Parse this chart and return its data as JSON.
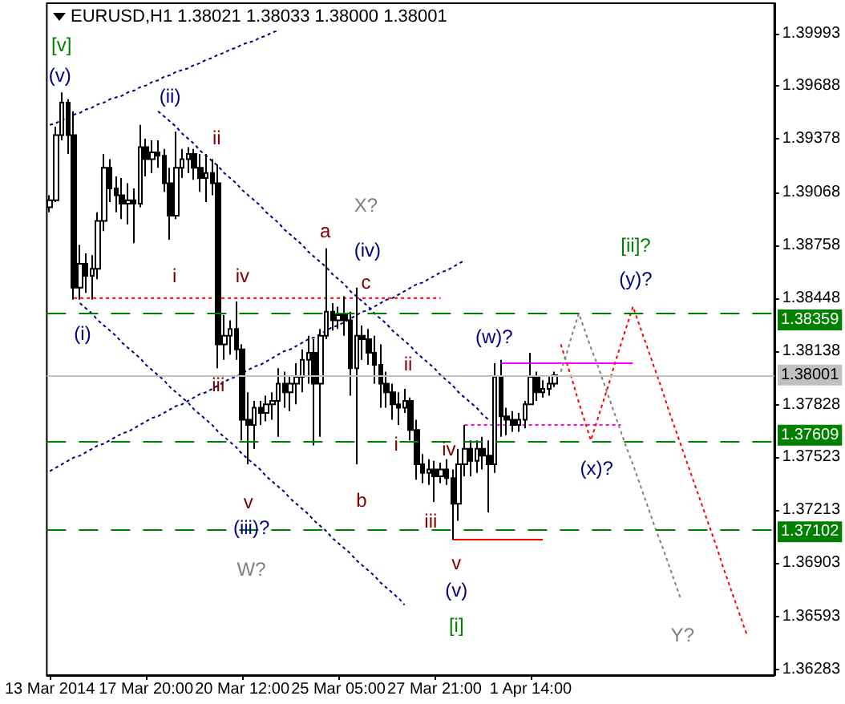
{
  "chart_data": {
    "type": "candlestick",
    "title": "EURUSD,H1 1.38021 1.38033 1.38000 1.38001",
    "marker": "none",
    "categories": [
      "13 Mar 2014",
      null,
      null,
      null,
      null,
      null,
      null,
      null,
      null,
      null,
      null,
      null,
      null,
      null,
      null,
      null,
      "17 Mar 20:00",
      null,
      null,
      null,
      null,
      null,
      null,
      null,
      null,
      null,
      null,
      null,
      null,
      null,
      null,
      null,
      "20 Mar 12:00",
      null,
      null,
      null,
      null,
      null,
      null,
      null,
      null,
      null,
      null,
      null,
      null,
      null,
      null,
      null,
      "25 Mar 05:00",
      null,
      null,
      null,
      null,
      null,
      null,
      null,
      null,
      null,
      null,
      null,
      null,
      null,
      null,
      null,
      "27 Mar 21:00",
      null,
      null,
      null,
      null,
      null,
      null,
      null,
      null,
      null,
      null,
      null,
      null,
      null,
      null,
      null,
      "1 Apr 14:00",
      null,
      null,
      null,
      null,
      null,
      null,
      null,
      null,
      null,
      null,
      null,
      null,
      null,
      null,
      null,
      null,
      null,
      null,
      null,
      null,
      null,
      null,
      null,
      null,
      null,
      null,
      null,
      null,
      null,
      null,
      null,
      null,
      null,
      null,
      null,
      null,
      null,
      null,
      null,
      null
    ],
    "ylim": [
      1.3625,
      1.4017
    ],
    "yticks": [
      1.36283,
      1.36593,
      1.36903,
      1.37213,
      1.37523,
      1.37828,
      1.38138,
      1.38448,
      1.38758,
      1.39068,
      1.39378,
      1.39688,
      1.39993
    ],
    "series": [
      {
        "color": "#000000",
        "ohlc": [
          [
            1.3898,
            1.3905,
            1.3895,
            1.3902
          ],
          [
            1.3902,
            1.3945,
            1.3901,
            1.394
          ],
          [
            1.394,
            1.3965,
            1.3937,
            1.3959
          ],
          [
            1.3959,
            1.3961,
            1.3929,
            1.394
          ],
          [
            1.394,
            1.3954,
            1.3844,
            1.3851
          ],
          [
            1.3851,
            1.3876,
            1.3844,
            1.3865
          ],
          [
            1.3865,
            1.3871,
            1.3848,
            1.3858
          ],
          [
            1.3858,
            1.387,
            1.3844,
            1.3862
          ],
          [
            1.3862,
            1.3895,
            1.3856,
            1.389
          ],
          [
            1.389,
            1.3929,
            1.3884,
            1.3921
          ],
          [
            1.3921,
            1.3926,
            1.3901,
            1.3909
          ],
          [
            1.3909,
            1.3916,
            1.3895,
            1.3905
          ],
          [
            1.3905,
            1.3915,
            1.3891,
            1.39
          ],
          [
            1.39,
            1.3912,
            1.3888,
            1.3902
          ],
          [
            1.3902,
            1.3909,
            1.3877,
            1.39
          ],
          [
            1.39,
            1.3946,
            1.3898,
            1.3933
          ],
          [
            1.3933,
            1.3938,
            1.3916,
            1.3926
          ],
          [
            1.3926,
            1.3937,
            1.3918,
            1.393
          ],
          [
            1.393,
            1.3937,
            1.3921,
            1.3928
          ],
          [
            1.3928,
            1.3932,
            1.3907,
            1.3912
          ],
          [
            1.3912,
            1.3921,
            1.3879,
            1.3893
          ],
          [
            1.3893,
            1.3942,
            1.3891,
            1.3921
          ],
          [
            1.3921,
            1.3932,
            1.3915,
            1.3926
          ],
          [
            1.3926,
            1.3933,
            1.3918,
            1.3929
          ],
          [
            1.3929,
            1.3932,
            1.3914,
            1.3921
          ],
          [
            1.3921,
            1.3929,
            1.3907,
            1.3915
          ],
          [
            1.3915,
            1.3929,
            1.3901,
            1.3918
          ],
          [
            1.3918,
            1.3926,
            1.3905,
            1.3912
          ],
          [
            1.3912,
            1.3923,
            1.3804,
            1.3818
          ],
          [
            1.3818,
            1.3835,
            1.3809,
            1.3823
          ],
          [
            1.3823,
            1.3832,
            1.3812,
            1.3827
          ],
          [
            1.3827,
            1.3843,
            1.3809,
            1.3815
          ],
          [
            1.3815,
            1.3818,
            1.3762,
            1.3774
          ],
          [
            1.3774,
            1.379,
            1.3748,
            1.3771
          ],
          [
            1.3771,
            1.3785,
            1.3757,
            1.3781
          ],
          [
            1.3781,
            1.3785,
            1.3771,
            1.3778
          ],
          [
            1.3778,
            1.3788,
            1.3773,
            1.3783
          ],
          [
            1.3783,
            1.379,
            1.3774,
            1.3785
          ],
          [
            1.3785,
            1.3804,
            1.3764,
            1.3795
          ],
          [
            1.3795,
            1.3802,
            1.3781,
            1.379
          ],
          [
            1.379,
            1.3799,
            1.3779,
            1.3795
          ],
          [
            1.3795,
            1.3807,
            1.3783,
            1.3799
          ],
          [
            1.3799,
            1.3815,
            1.379,
            1.3809
          ],
          [
            1.3809,
            1.3823,
            1.3795,
            1.3813
          ],
          [
            1.3813,
            1.3821,
            1.3759,
            1.3795
          ],
          [
            1.3795,
            1.3827,
            1.3764,
            1.3823
          ],
          [
            1.3823,
            1.3874,
            1.3821,
            1.3837
          ],
          [
            1.3837,
            1.3842,
            1.3826,
            1.3832
          ],
          [
            1.3832,
            1.384,
            1.3827,
            1.3835
          ],
          [
            1.3835,
            1.3846,
            1.3823,
            1.3832
          ],
          [
            1.3832,
            1.3837,
            1.3788,
            1.3804
          ],
          [
            1.3804,
            1.3851,
            1.3748,
            1.3823
          ],
          [
            1.3823,
            1.3829,
            1.3809,
            1.3821
          ],
          [
            1.3821,
            1.3827,
            1.3806,
            1.3813
          ],
          [
            1.3813,
            1.3823,
            1.3795,
            1.3806
          ],
          [
            1.3806,
            1.3818,
            1.3781,
            1.3795
          ],
          [
            1.3795,
            1.3802,
            1.3781,
            1.379
          ],
          [
            1.379,
            1.3795,
            1.3774,
            1.3783
          ],
          [
            1.3783,
            1.379,
            1.3771,
            1.3781
          ],
          [
            1.3781,
            1.3792,
            1.3778,
            1.3785
          ],
          [
            1.3785,
            1.3787,
            1.3762,
            1.3768
          ],
          [
            1.3768,
            1.3774,
            1.3739,
            1.3748
          ],
          [
            1.3748,
            1.3754,
            1.3737,
            1.3743
          ],
          [
            1.3743,
            1.3751,
            1.3736,
            1.3745
          ],
          [
            1.3745,
            1.375,
            1.3726,
            1.3741
          ],
          [
            1.3741,
            1.3749,
            1.3737,
            1.3745
          ],
          [
            1.3745,
            1.3751,
            1.3736,
            1.374
          ],
          [
            1.374,
            1.3745,
            1.3704,
            1.3725
          ],
          [
            1.3725,
            1.3757,
            1.3715,
            1.3748
          ],
          [
            1.3748,
            1.3771,
            1.3741,
            1.3757
          ],
          [
            1.3757,
            1.3762,
            1.3741,
            1.375
          ],
          [
            1.375,
            1.3762,
            1.3743,
            1.3757
          ],
          [
            1.3757,
            1.3764,
            1.3745,
            1.3753
          ],
          [
            1.3753,
            1.3762,
            1.372,
            1.3748
          ],
          [
            1.3748,
            1.3807,
            1.3743,
            1.3799
          ],
          [
            1.3799,
            1.3809,
            1.3764,
            1.3776
          ],
          [
            1.3776,
            1.3781,
            1.3765,
            1.3774
          ],
          [
            1.3774,
            1.3779,
            1.3767,
            1.3771
          ],
          [
            1.3771,
            1.3778,
            1.3767,
            1.3774
          ],
          [
            1.3774,
            1.3785,
            1.3769,
            1.3783
          ],
          [
            1.3783,
            1.3813,
            1.3783,
            1.3799
          ],
          [
            1.3799,
            1.3802,
            1.3785,
            1.379
          ],
          [
            1.379,
            1.3797,
            1.3787,
            1.3792
          ],
          [
            1.3792,
            1.3799,
            1.3788,
            1.3795
          ],
          [
            1.3795,
            1.3802,
            1.3793,
            1.38
          ],
          null,
          null,
          null,
          null,
          null,
          null,
          null,
          null,
          null,
          null,
          null,
          null,
          null,
          null,
          null,
          null,
          null,
          null,
          null,
          null,
          null,
          null,
          null,
          null,
          null,
          null,
          null,
          null,
          null,
          null,
          null,
          null,
          null,
          null,
          null,
          null
        ]
      },
      {
        "type": "line",
        "color": "#000080",
        "line_style": "dotted",
        "values": [
          1.3946,
          1.3947,
          1.3949,
          1.395,
          1.3952,
          1.3953,
          1.3955,
          1.3956,
          1.3958,
          1.3959,
          1.3961,
          1.3962,
          1.3963,
          1.3965,
          1.3966,
          1.3968,
          1.3969,
          1.3971,
          1.3972,
          1.3974,
          1.3975,
          1.3977,
          1.3978,
          1.3979,
          1.3981,
          1.3982,
          1.3984,
          1.3985,
          1.3987,
          1.3988,
          1.399,
          1.3991,
          1.3993,
          1.3994,
          1.3995,
          1.3997,
          1.3998,
          1.4,
          1.4001,
          null,
          null,
          null,
          null,
          null,
          null,
          null,
          null,
          null,
          null,
          null,
          null,
          null,
          null,
          null,
          null,
          null,
          null,
          null,
          null,
          null,
          null,
          null,
          null,
          null,
          null,
          null,
          null,
          null,
          null,
          null,
          null,
          null,
          null,
          null,
          null,
          null,
          null,
          null,
          null,
          null,
          null,
          null,
          null,
          null,
          null,
          null,
          null,
          null,
          null,
          null,
          null,
          null,
          null,
          null,
          null,
          null,
          null,
          null,
          null,
          null,
          null,
          null,
          null,
          null,
          null,
          null,
          null,
          null,
          null,
          null,
          null,
          null,
          null,
          null,
          null,
          null,
          null,
          null,
          null,
          null,
          null
        ]
      },
      {
        "type": "line",
        "color": "#000080",
        "line_style": "dotted",
        "values": [
          null,
          null,
          null,
          null,
          null,
          null,
          null,
          null,
          null,
          null,
          null,
          null,
          null,
          null,
          null,
          null,
          null,
          null,
          1.3954,
          1.3951,
          1.3948,
          1.3945,
          1.3941,
          1.3938,
          1.3935,
          1.3931,
          1.3928,
          1.3925,
          1.3922,
          1.3918,
          1.3915,
          1.3912,
          1.3908,
          1.3905,
          1.3902,
          1.3899,
          1.3895,
          1.3892,
          1.3889,
          1.3885,
          1.3882,
          1.3879,
          1.3876,
          1.3872,
          1.3869,
          1.3866,
          1.3863,
          1.3859,
          1.3856,
          1.3853,
          1.3849,
          1.3846,
          1.3843,
          1.384,
          1.3836,
          1.3833,
          1.383,
          1.3826,
          1.3823,
          1.382,
          1.3817,
          1.3813,
          1.381,
          1.3807,
          1.3804,
          1.38,
          1.3797,
          1.3794,
          1.379,
          1.3787,
          1.3784,
          1.3781,
          1.3777,
          1.3774,
          null,
          null,
          null,
          null,
          null,
          null,
          null,
          null,
          null,
          null,
          null,
          null,
          null,
          null,
          null,
          null,
          null,
          null,
          null,
          null,
          null,
          null,
          null,
          null,
          null,
          null,
          null,
          null,
          null,
          null,
          null,
          null,
          null,
          null,
          null,
          null,
          null,
          null,
          null,
          null,
          null,
          null,
          null,
          null,
          null,
          null,
          null
        ]
      },
      {
        "type": "line",
        "color": "#000080",
        "line_style": "dotted",
        "values": [
          null,
          null,
          null,
          null,
          null,
          1.3842,
          1.3839,
          1.3836,
          1.3832,
          1.3829,
          1.3826,
          1.3823,
          1.3819,
          1.3816,
          1.3813,
          1.381,
          1.3806,
          1.3803,
          1.38,
          1.3797,
          1.3793,
          1.379,
          1.3787,
          1.3784,
          1.378,
          1.3777,
          1.3774,
          1.3771,
          1.3767,
          1.3764,
          1.3761,
          1.3758,
          1.3754,
          1.3751,
          1.3748,
          1.3745,
          1.3741,
          1.3738,
          1.3735,
          1.3732,
          1.3728,
          1.3725,
          1.3722,
          1.3719,
          1.3715,
          1.3712,
          1.3709,
          1.3705,
          1.3702,
          1.3699,
          1.3696,
          1.3692,
          1.3689,
          1.3686,
          1.3683,
          1.3679,
          1.3676,
          1.3673,
          1.367,
          1.3666,
          null,
          null,
          null,
          null,
          null,
          null,
          null,
          null,
          null,
          null,
          null,
          null,
          null,
          null,
          null,
          null,
          null,
          null,
          null,
          null,
          null,
          null,
          null,
          null,
          null,
          null,
          null,
          null,
          null,
          null,
          null,
          null,
          null,
          null,
          null,
          null,
          null,
          null,
          null,
          null,
          null,
          null,
          null,
          null,
          null,
          null,
          null,
          null,
          null,
          null,
          null,
          null,
          null,
          null,
          null,
          null,
          null,
          null,
          null,
          null,
          null
        ]
      },
      {
        "type": "line",
        "color": "#000080",
        "line_style": "dotted",
        "values": [
          1.3744,
          1.3746,
          1.3748,
          1.375,
          1.3752,
          1.3753,
          1.3755,
          1.3757,
          1.3759,
          1.376,
          1.3762,
          1.3764,
          1.3766,
          1.3767,
          1.3769,
          1.3771,
          1.3773,
          1.3775,
          1.3776,
          1.3778,
          1.378,
          1.3782,
          1.3783,
          1.3785,
          1.3787,
          1.3789,
          1.379,
          1.3792,
          1.3794,
          1.3796,
          1.3798,
          1.3799,
          1.3801,
          1.3803,
          1.3805,
          1.3806,
          1.3808,
          1.381,
          1.3812,
          1.3814,
          1.3815,
          1.3817,
          1.3819,
          1.3821,
          1.3822,
          1.3824,
          1.3826,
          1.3828,
          1.3829,
          1.3831,
          1.3833,
          1.3835,
          1.3837,
          1.3838,
          1.384,
          1.3842,
          1.3844,
          1.3845,
          1.3847,
          1.3849,
          1.3851,
          1.3853,
          1.3854,
          1.3856,
          1.3858,
          1.386,
          1.3861,
          1.3863,
          1.3865,
          1.3867,
          null,
          null,
          null,
          null,
          null,
          null,
          null,
          null,
          null,
          null,
          null,
          null,
          null,
          null,
          null,
          null,
          null,
          null,
          null,
          null,
          null,
          null,
          null,
          null,
          null,
          null,
          null,
          null,
          null,
          null,
          null,
          null,
          null,
          null,
          null,
          null,
          null,
          null,
          null,
          null,
          null,
          null,
          null,
          null,
          null,
          null,
          null,
          null,
          null,
          null,
          null
        ]
      },
      {
        "type": "line",
        "color": "#ff0000",
        "line_style": "dotted",
        "values": [
          null,
          null,
          null,
          null,
          1.3845,
          1.3845,
          1.3845,
          1.3845,
          1.3845,
          1.3845,
          1.3845,
          1.3845,
          1.3845,
          1.3845,
          1.3845,
          1.3845,
          1.3845,
          1.3845,
          1.3845,
          1.3845,
          1.3845,
          1.3845,
          1.3845,
          1.3845,
          1.3845,
          1.3845,
          1.3845,
          1.3845,
          1.3845,
          1.3845,
          1.3845,
          1.3845,
          1.3845,
          1.3845,
          1.3845,
          1.3845,
          1.3845,
          1.3845,
          1.3845,
          1.3845,
          1.3845,
          1.3845,
          1.3845,
          1.3845,
          1.3845,
          1.3845,
          1.3845,
          1.3845,
          1.3845,
          1.3845,
          1.3845,
          1.3845,
          1.3845,
          1.3845,
          1.3845,
          1.3845,
          1.3845,
          1.3845,
          1.3845,
          1.3845,
          1.3845,
          1.3845,
          1.3845,
          1.3845,
          1.3845,
          1.3845,
          null,
          null,
          null,
          null,
          null,
          null,
          null,
          null,
          null,
          null,
          null,
          null,
          null,
          null,
          null,
          null,
          null,
          null,
          null,
          null,
          null,
          null,
          null,
          null,
          null,
          null,
          null,
          null,
          null,
          null,
          null,
          null,
          null,
          null,
          null,
          null,
          null,
          null,
          null,
          null,
          null,
          null,
          null,
          null,
          null,
          null,
          null,
          null,
          null,
          null,
          null,
          null,
          null,
          null,
          null
        ]
      },
      {
        "type": "line",
        "color": "#ff00ff",
        "line_style": "solid",
        "values": [
          null,
          null,
          null,
          null,
          null,
          null,
          null,
          null,
          null,
          null,
          null,
          null,
          null,
          null,
          null,
          null,
          null,
          null,
          null,
          null,
          null,
          null,
          null,
          null,
          null,
          null,
          null,
          null,
          null,
          null,
          null,
          null,
          null,
          null,
          null,
          null,
          null,
          null,
          null,
          null,
          null,
          null,
          null,
          null,
          null,
          null,
          null,
          null,
          null,
          null,
          null,
          null,
          null,
          null,
          null,
          null,
          null,
          null,
          null,
          null,
          null,
          null,
          null,
          null,
          null,
          null,
          null,
          null,
          null,
          null,
          null,
          null,
          null,
          null,
          null,
          1.3807,
          1.3807,
          1.3807,
          1.3807,
          1.3807,
          1.3807,
          1.3807,
          1.3807,
          1.3807,
          1.3807,
          1.3807,
          1.3807,
          1.3807,
          1.3807,
          1.3807,
          1.3807,
          1.3807,
          1.3807,
          1.3807,
          1.3807,
          1.3807,
          1.3807,
          1.3807,
          null,
          null,
          null,
          null,
          null,
          null,
          null,
          null,
          null,
          null,
          null,
          null,
          null,
          null,
          null,
          null,
          null,
          null,
          null,
          null,
          null,
          null,
          null
        ]
      },
      {
        "type": "line",
        "color": "#ff00ff",
        "line_style": "dotted",
        "values": [
          null,
          null,
          null,
          null,
          null,
          null,
          null,
          null,
          null,
          null,
          null,
          null,
          null,
          null,
          null,
          null,
          null,
          null,
          null,
          null,
          null,
          null,
          null,
          null,
          null,
          null,
          null,
          null,
          null,
          null,
          null,
          null,
          null,
          null,
          null,
          null,
          null,
          null,
          null,
          null,
          null,
          null,
          null,
          null,
          null,
          null,
          null,
          null,
          null,
          null,
          null,
          null,
          null,
          null,
          null,
          null,
          null,
          null,
          null,
          null,
          null,
          null,
          null,
          null,
          null,
          null,
          null,
          null,
          null,
          1.3771,
          1.3771,
          1.3771,
          1.3771,
          1.3771,
          1.3771,
          1.3771,
          1.3771,
          1.3771,
          1.3771,
          1.3771,
          1.3771,
          1.3771,
          1.3771,
          1.3771,
          1.3771,
          1.3771,
          1.3771,
          1.3771,
          1.3771,
          1.3771,
          1.3771,
          1.3771,
          1.3771,
          1.3771,
          1.3771,
          1.3771,
          null,
          null,
          null,
          null,
          null,
          null,
          null,
          null,
          null,
          null,
          null,
          null,
          null,
          null,
          null,
          null,
          null,
          null,
          null,
          null,
          null,
          null,
          null,
          null,
          null
        ]
      },
      {
        "type": "line",
        "color": "#ff0000",
        "line_style": "solid",
        "values": [
          null,
          null,
          null,
          null,
          null,
          null,
          null,
          null,
          null,
          null,
          null,
          null,
          null,
          null,
          null,
          null,
          null,
          null,
          null,
          null,
          null,
          null,
          null,
          null,
          null,
          null,
          null,
          null,
          null,
          null,
          null,
          null,
          null,
          null,
          null,
          null,
          null,
          null,
          null,
          null,
          null,
          null,
          null,
          null,
          null,
          null,
          null,
          null,
          null,
          null,
          null,
          null,
          null,
          null,
          null,
          null,
          null,
          null,
          null,
          null,
          null,
          null,
          null,
          null,
          null,
          null,
          null,
          1.3704,
          1.3704,
          1.3704,
          1.3704,
          1.3704,
          1.3704,
          1.3704,
          1.3704,
          1.3704,
          1.3704,
          1.3704,
          1.3704,
          1.3704,
          1.3704,
          1.3704,
          1.3704,
          null,
          null,
          null,
          null,
          null,
          null,
          null,
          null,
          null,
          null,
          null,
          null,
          null,
          null,
          null,
          null,
          null,
          null,
          null,
          null,
          null,
          null,
          null,
          null,
          null,
          null,
          null,
          null,
          null,
          null,
          null,
          null,
          null,
          null,
          null,
          null,
          null,
          null
        ]
      },
      {
        "type": "line",
        "color": "#ff0000",
        "line_style": "dotted",
        "values": [
          null,
          null,
          null,
          null,
          null,
          null,
          null,
          null,
          null,
          null,
          null,
          null,
          null,
          null,
          null,
          null,
          null,
          null,
          null,
          null,
          null,
          null,
          null,
          null,
          null,
          null,
          null,
          null,
          null,
          null,
          null,
          null,
          null,
          null,
          null,
          null,
          null,
          null,
          null,
          null,
          null,
          null,
          null,
          null,
          null,
          null,
          null,
          null,
          null,
          null,
          null,
          null,
          null,
          null,
          null,
          null,
          null,
          null,
          null,
          null,
          null,
          null,
          null,
          null,
          null,
          null,
          null,
          null,
          null,
          null,
          null,
          null,
          null,
          null,
          null,
          null,
          null,
          null,
          null,
          null,
          null,
          null,
          null,
          null,
          null,
          1.3818,
          1.3807,
          1.3796,
          1.3784,
          1.3773,
          1.3762,
          1.3773,
          1.3784,
          1.3795,
          1.3807,
          1.3818,
          1.3829,
          1.384,
          1.383,
          1.382,
          1.381,
          1.38,
          1.379,
          1.3779,
          1.3769,
          1.3759,
          1.3749,
          1.3739,
          1.3729,
          1.3719,
          1.3709,
          1.3699,
          1.3688,
          1.3678,
          1.3668,
          1.3658,
          1.3648,
          null,
          null,
          null,
          null
        ]
      },
      {
        "type": "line",
        "color": "#808080",
        "line_style": "dotted",
        "values": [
          null,
          null,
          null,
          null,
          null,
          null,
          null,
          null,
          null,
          null,
          null,
          null,
          null,
          null,
          null,
          null,
          null,
          null,
          null,
          null,
          null,
          null,
          null,
          null,
          null,
          null,
          null,
          null,
          null,
          null,
          null,
          null,
          null,
          null,
          null,
          null,
          null,
          null,
          null,
          null,
          null,
          null,
          null,
          null,
          null,
          null,
          null,
          null,
          null,
          null,
          null,
          null,
          null,
          null,
          null,
          null,
          null,
          null,
          null,
          null,
          null,
          null,
          null,
          null,
          null,
          null,
          null,
          null,
          null,
          null,
          null,
          null,
          null,
          null,
          null,
          null,
          null,
          null,
          null,
          null,
          null,
          null,
          null,
          null,
          null,
          1.3802,
          1.3813,
          1.3825,
          1.3836,
          1.3826,
          1.3816,
          1.3807,
          1.3797,
          1.3787,
          1.3777,
          1.3767,
          1.3757,
          1.3748,
          1.3738,
          1.3728,
          1.3718,
          1.3708,
          1.3699,
          1.3689,
          1.3679,
          1.3669,
          null,
          null,
          null,
          null,
          null,
          null,
          null,
          null,
          null,
          null,
          null,
          null,
          null,
          null,
          null
        ]
      }
    ],
    "ref_lines": [
      {
        "axis": "y",
        "value": 1.38359,
        "label": "1.38359",
        "color": "#008000",
        "line_style": "dashed"
      },
      {
        "axis": "y",
        "value": 1.37609,
        "label": "1.37609",
        "color": "#008000",
        "line_style": "dashed"
      },
      {
        "axis": "y",
        "value": 1.37102,
        "label": "1.37102",
        "color": "#008000",
        "line_style": "dashed"
      },
      {
        "axis": "y",
        "value": 1.38001,
        "label": "1.38001",
        "color": "#c0c0c0",
        "line_style": "solid"
      }
    ],
    "annotations": [
      "[v]",
      "(v)",
      "(ii)",
      "ii",
      "i",
      "iv",
      "(i)",
      "iii",
      "v",
      "(iii)?",
      "W?",
      "X?",
      "a",
      "(iv)",
      "c",
      "(w)?",
      "ii",
      "i",
      "b",
      "iv",
      "iii",
      "v",
      "(v)",
      "[i]",
      "[ii]?",
      "(y)?",
      "(x)?",
      "Y?"
    ]
  }
}
